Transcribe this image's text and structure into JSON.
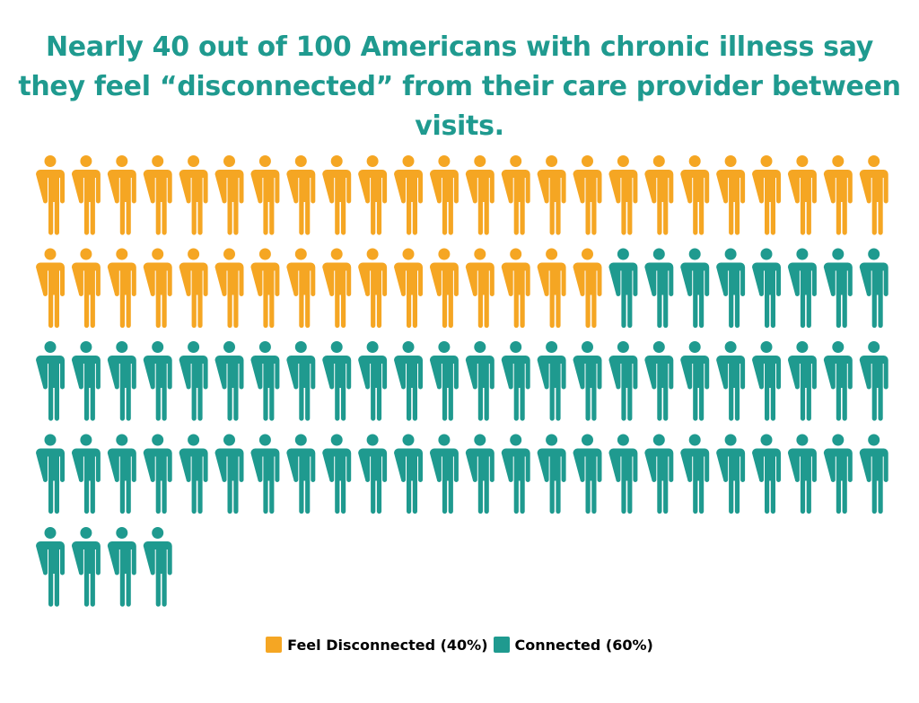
{
  "title": "Nearly 40 out of 100 Americans with chronic illness say they feel “disconnected” from their care provider between visits.",
  "chart_data": {
    "type": "pictogram",
    "total": 100,
    "series": [
      {
        "name": "Feel Disconnected (40%)",
        "value": 40,
        "color": "#f5a623"
      },
      {
        "name": "Connected (60%)",
        "value": 60,
        "color": "#1f9a8f"
      }
    ],
    "title": "Nearly 40 out of 100 Americans with chronic illness say they feel “disconnected” from their care provider between visits.",
    "legend_position": "bottom-center"
  },
  "legend": {
    "items": [
      {
        "label": "Feel Disconnected (40%)",
        "color": "#f5a623"
      },
      {
        "label": "Connected (60%)",
        "color": "#1f9a8f"
      }
    ]
  },
  "icon": "person-icon"
}
